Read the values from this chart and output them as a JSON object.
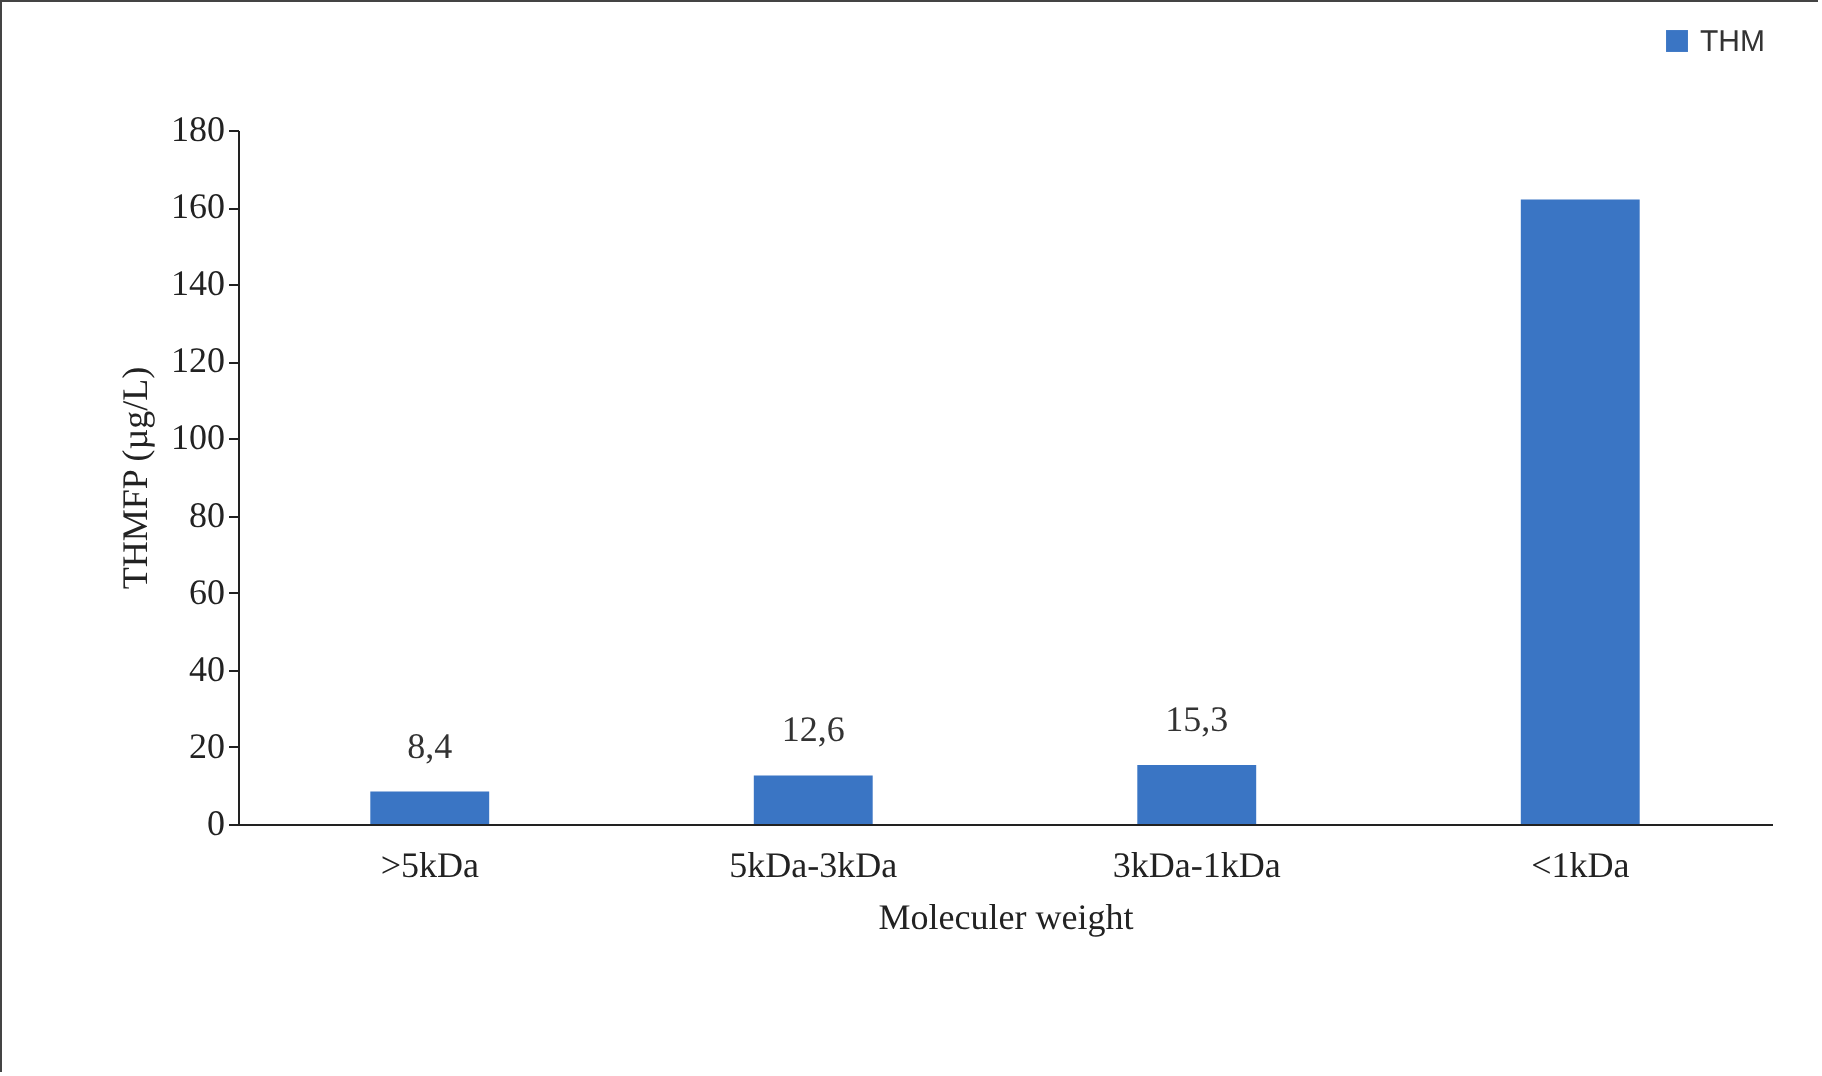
{
  "chart_data": {
    "type": "bar",
    "xlabel": "Moleculer weight",
    "ylabel": "THMFP (µg/L)",
    "categories": [
      ">5kDa",
      "5kDa-3kDa",
      "3kDa-1kDa",
      "<1kDa"
    ],
    "series": [
      {
        "name": "THM",
        "color": "#3a75c4",
        "values": [
          8.4,
          12.6,
          15.3,
          162
        ],
        "value_labels": [
          "8,4",
          "12,6",
          "15,3",
          null
        ]
      }
    ],
    "ylim": [
      0,
      180
    ],
    "yticks": [
      0,
      20,
      40,
      60,
      80,
      100,
      120,
      140,
      160,
      180
    ],
    "grid": false,
    "legend": "top right"
  }
}
